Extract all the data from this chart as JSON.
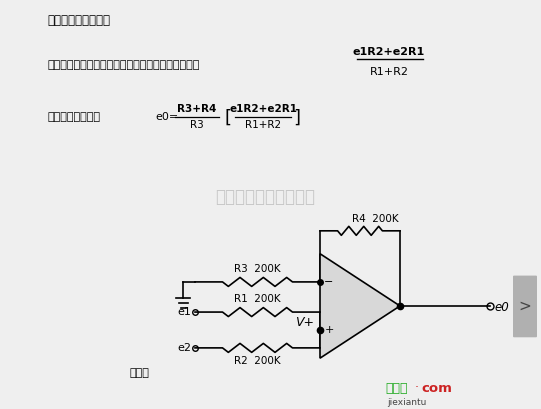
{
  "title": "同相加法器电路原理",
  "bg_color": "#efefef",
  "text_color": "#000000",
  "watermark": "杭州将睿科技有限公司",
  "watermark_color": "#c0c0c0",
  "line1": "图为同相加法器电路图，因为同相输入端的电压为：",
  "fraction1_num": "e1R2+e2R1",
  "fraction1_den": "R1+R2",
  "line2_prefix": "所以输出电压为：",
  "formula_e0": "e0=",
  "formula_frac_num": "R3+R4",
  "formula_frac_den": "R3",
  "formula_bracket_num": "e1R2+e2R1",
  "formula_bracket_den": "R1+R2",
  "label_R3": "R3  200K",
  "label_R1": "R1  200K",
  "label_R2": "R2  200K",
  "label_R4": "R4  200K",
  "label_Vplus": "V+",
  "label_e1": "e1",
  "label_e2": "e2",
  "label_e0_out": "e0",
  "label_yuanlitu": "原理图",
  "logo_text": "接线图",
  "logo_dot": "·",
  "logo_com": "com",
  "logo_color": "#22aa22",
  "logo_com_color": "#cc2222",
  "nav_arrow": ">",
  "nav_bg": "#b0b0b0",
  "circuit_bg": "#d8d8d8",
  "wire_color": "#000000",
  "resistor_color": "#000000"
}
